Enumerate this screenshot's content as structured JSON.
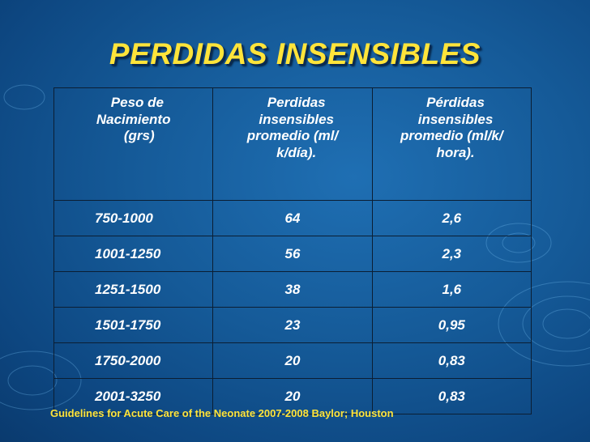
{
  "title": "PERDIDAS INSENSIBLES",
  "table": {
    "headers": [
      "  Peso de\nNacimiento\n   (grs)",
      "  Perdidas\n  insensibles\npromedio (ml/\n  k/día).",
      "  Pérdidas\n  insensibles\npromedio (ml/k/\n  hora)."
    ],
    "rows": [
      [
        "750-1000",
        "64",
        "2,6"
      ],
      [
        "1001-1250",
        "56",
        "2,3"
      ],
      [
        "1251-1500",
        "38",
        "1,6"
      ],
      [
        "1501-1750",
        "23",
        "0,95"
      ],
      [
        "1750-2000",
        "20",
        "0,83"
      ],
      [
        "2001-3250",
        "20",
        "0,83"
      ]
    ]
  },
  "footer": "Guidelines for Acute Care of the Neonate  2007-2008  Baylor; Houston",
  "colors": {
    "title": "#ffe43a",
    "background": "#155a98",
    "text": "#ffffff"
  }
}
